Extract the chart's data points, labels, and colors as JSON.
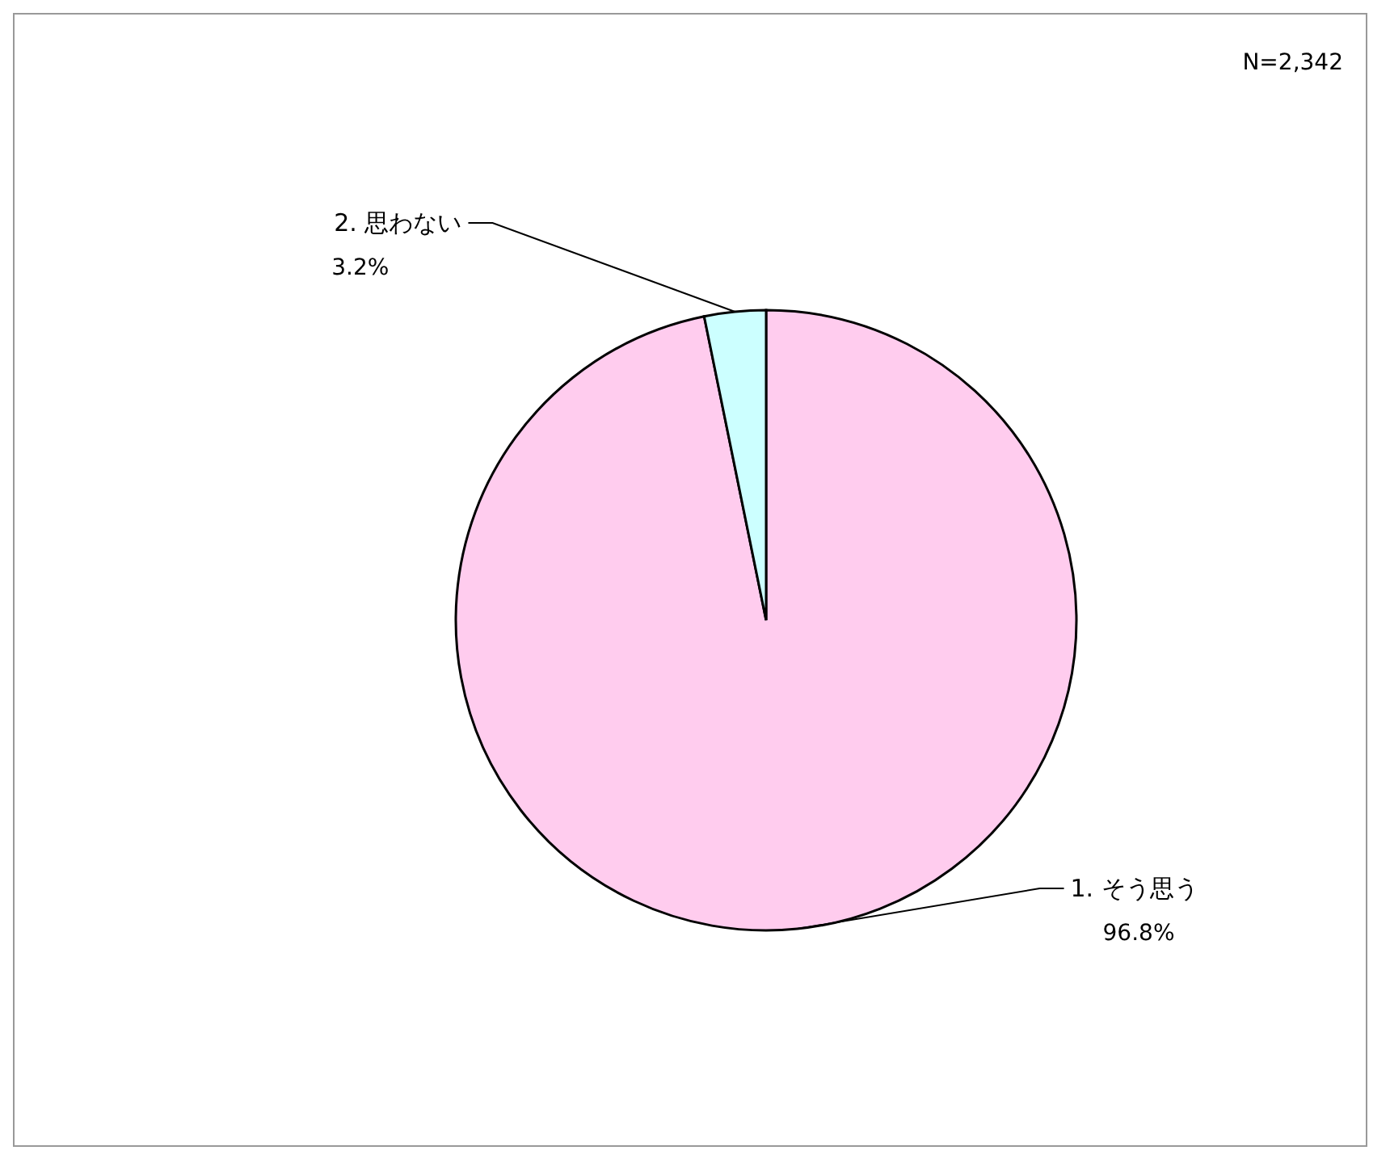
{
  "chart_data": {
    "type": "pie",
    "categories": [
      "1. そう思う",
      "2. 思わない"
    ],
    "values": [
      96.8,
      3.2
    ],
    "colors": [
      "#ffccee",
      "#ccffff"
    ],
    "value_labels": [
      "96.8%",
      "3.2%"
    ],
    "annotations": [
      "N=2,342"
    ],
    "legend": false
  }
}
